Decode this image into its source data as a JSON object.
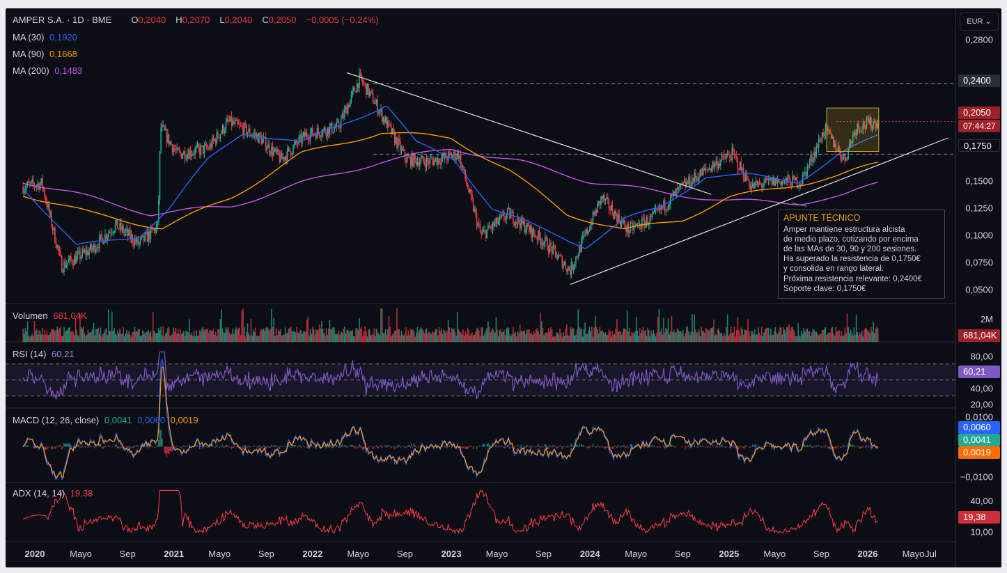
{
  "header": {
    "symbol": "AMPER S.A. · 1D · BME",
    "o_label": "O",
    "o_value": "0,2040",
    "h_label": "H",
    "h_value": "0,2070",
    "l_label": "L",
    "l_value": "0,2040",
    "c_label": "C",
    "c_value": "0,2050",
    "change": "−0,0005 (−0,24%)"
  },
  "currency": "EUR",
  "indicators": {
    "ma30": {
      "label": "MA (30)",
      "value": "0,1920",
      "color": "#2962ff"
    },
    "ma90": {
      "label": "MA (90)",
      "value": "0,1668",
      "color": "#ff9800"
    },
    "ma200": {
      "label": "MA (200)",
      "value": "0,1483",
      "color": "#c653f0"
    },
    "volume": {
      "label": "Volumen",
      "value": "681,04K"
    },
    "rsi": {
      "label": "RSI (14)",
      "value": "60,21"
    },
    "macd": {
      "label": "MACD (12, 26, close)",
      "hist": "0,0041",
      "macd": "0,0060",
      "signal": "0,0019"
    },
    "adx": {
      "label": "ADX (14, 14)",
      "value": "19,38"
    }
  },
  "tags": {
    "resistance": "0,2400",
    "price": "0,2050",
    "countdown": "07:44:27",
    "support": "0,1750",
    "volume": "681,04K",
    "rsi": "60,21",
    "macd": "0,0060",
    "hist": "0,0041",
    "signal": "0,0019",
    "adx": "19,38"
  },
  "note": {
    "title": "APUNTE TÉCNICO",
    "lines": [
      "Amper mantiene estructura alcista",
      "de medio plazo, cotizando por encima",
      "de las MAs de 30, 90 y 200 sesiones.",
      "Ha superado la resistencia de 0,1750€",
      "y consolida en rango lateral.",
      "Próxima resistencia relevante: 0,2400€",
      "Soporte clave: 0,1750€"
    ]
  },
  "colors": {
    "up": "#22ab94",
    "down": "#f23645",
    "background": "#0b0e14",
    "grid": "#1c2030",
    "text": "#d1d4dc"
  },
  "chart_data": {
    "type": "candlestick",
    "x_ticks": [
      "2020",
      "Mayo",
      "Sep",
      "2021",
      "Mayo",
      "Sep",
      "2022",
      "Mayo",
      "Sep",
      "2023",
      "Mayo",
      "Sep",
      "2024",
      "Mayo",
      "Sep",
      "2025",
      "Mayo",
      "Sep",
      "2026",
      "Mayo",
      "Jul"
    ],
    "price_axis": {
      "ticks": [
        "0,2800",
        "0,2400",
        "0,2050",
        "0,1750",
        "0,1500",
        "0,1250",
        "0,1000",
        "0,0750",
        "0,0500"
      ],
      "range": [
        0.04,
        0.29
      ]
    },
    "volume_axis": {
      "ticks": [
        "2M"
      ]
    },
    "rsi_axis": {
      "ticks": [
        "80,00",
        "40,00",
        "20,00"
      ],
      "bands": [
        30,
        50,
        70
      ],
      "range": [
        15,
        95
      ]
    },
    "macd_axis": {
      "ticks": [
        "0,0100",
        "0,0000",
        "−0,0100"
      ],
      "range": [
        -0.012,
        0.012
      ]
    },
    "adx_axis": {
      "ticks": [
        "40,00",
        "10,00"
      ],
      "range": [
        0,
        55
      ]
    },
    "price_path_anchors": [
      {
        "x": "2019-12-01",
        "y": 0.145
      },
      {
        "x": "2020-01-20",
        "y": 0.148
      },
      {
        "x": "2020-03-12",
        "y": 0.072
      },
      {
        "x": "2020-06-01",
        "y": 0.088
      },
      {
        "x": "2020-08-01",
        "y": 0.11
      },
      {
        "x": "2020-10-01",
        "y": 0.092
      },
      {
        "x": "2020-11-20",
        "y": 0.108
      },
      {
        "x": "2020-11-27",
        "y": 0.2
      },
      {
        "x": "2021-01-10",
        "y": 0.175
      },
      {
        "x": "2021-04-01",
        "y": 0.18
      },
      {
        "x": "2021-05-25",
        "y": 0.205
      },
      {
        "x": "2021-08-15",
        "y": 0.19
      },
      {
        "x": "2021-10-10",
        "y": 0.17
      },
      {
        "x": "2021-12-15",
        "y": 0.193
      },
      {
        "x": "2022-03-10",
        "y": 0.2
      },
      {
        "x": "2022-05-05",
        "y": 0.245
      },
      {
        "x": "2022-06-10",
        "y": 0.225
      },
      {
        "x": "2022-09-05",
        "y": 0.17
      },
      {
        "x": "2022-11-01",
        "y": 0.168
      },
      {
        "x": "2023-01-20",
        "y": 0.175
      },
      {
        "x": "2023-03-20",
        "y": 0.1
      },
      {
        "x": "2023-06-01",
        "y": 0.12
      },
      {
        "x": "2023-09-01",
        "y": 0.095
      },
      {
        "x": "2023-11-10",
        "y": 0.068
      },
      {
        "x": "2024-01-01",
        "y": 0.11
      },
      {
        "x": "2024-02-01",
        "y": 0.135
      },
      {
        "x": "2024-04-10",
        "y": 0.105
      },
      {
        "x": "2024-06-10",
        "y": 0.115
      },
      {
        "x": "2024-09-01",
        "y": 0.145
      },
      {
        "x": "2024-11-20",
        "y": 0.165
      },
      {
        "x": "2025-01-10",
        "y": 0.175
      },
      {
        "x": "2025-03-01",
        "y": 0.145
      },
      {
        "x": "2025-05-01",
        "y": 0.15
      },
      {
        "x": "2025-07-10",
        "y": 0.15
      },
      {
        "x": "2025-09-10",
        "y": 0.198
      },
      {
        "x": "2025-11-01",
        "y": 0.17
      },
      {
        "x": "2025-12-01",
        "y": 0.2
      },
      {
        "x": "2026-01-30",
        "y": 0.205
      }
    ],
    "ma30_anchors": [
      {
        "x": "2019-12-01",
        "y": 0.145
      },
      {
        "x": "2020-04-20",
        "y": 0.09
      },
      {
        "x": "2020-10-01",
        "y": 0.1
      },
      {
        "x": "2020-12-20",
        "y": 0.125
      },
      {
        "x": "2021-04-01",
        "y": 0.17
      },
      {
        "x": "2021-07-01",
        "y": 0.195
      },
      {
        "x": "2021-12-01",
        "y": 0.185
      },
      {
        "x": "2022-04-01",
        "y": 0.205
      },
      {
        "x": "2022-07-15",
        "y": 0.22
      },
      {
        "x": "2022-10-01",
        "y": 0.185
      },
      {
        "x": "2023-01-10",
        "y": 0.17
      },
      {
        "x": "2023-04-20",
        "y": 0.125
      },
      {
        "x": "2023-09-01",
        "y": 0.105
      },
      {
        "x": "2023-12-20",
        "y": 0.09
      },
      {
        "x": "2024-04-01",
        "y": 0.115
      },
      {
        "x": "2024-07-01",
        "y": 0.125
      },
      {
        "x": "2024-11-01",
        "y": 0.155
      },
      {
        "x": "2025-03-01",
        "y": 0.155
      },
      {
        "x": "2025-07-01",
        "y": 0.15
      },
      {
        "x": "2025-10-20",
        "y": 0.175
      },
      {
        "x": "2026-01-30",
        "y": 0.192
      }
    ],
    "ma90_anchors": [
      {
        "x": "2019-12-01",
        "y": 0.138
      },
      {
        "x": "2020-06-01",
        "y": 0.12
      },
      {
        "x": "2020-12-01",
        "y": 0.107
      },
      {
        "x": "2021-06-01",
        "y": 0.135
      },
      {
        "x": "2021-12-01",
        "y": 0.175
      },
      {
        "x": "2022-07-01",
        "y": 0.195
      },
      {
        "x": "2023-01-01",
        "y": 0.19
      },
      {
        "x": "2023-06-01",
        "y": 0.16
      },
      {
        "x": "2023-11-01",
        "y": 0.12
      },
      {
        "x": "2024-04-01",
        "y": 0.105
      },
      {
        "x": "2024-09-01",
        "y": 0.115
      },
      {
        "x": "2025-01-01",
        "y": 0.135
      },
      {
        "x": "2025-06-01",
        "y": 0.145
      },
      {
        "x": "2025-10-15",
        "y": 0.155
      },
      {
        "x": "2026-01-30",
        "y": 0.1668
      }
    ],
    "ma200_anchors": [
      {
        "x": "2019-12-01",
        "y": 0.15
      },
      {
        "x": "2020-04-01",
        "y": 0.14
      },
      {
        "x": "2020-11-01",
        "y": 0.12
      },
      {
        "x": "2021-06-01",
        "y": 0.127
      },
      {
        "x": "2021-12-01",
        "y": 0.148
      },
      {
        "x": "2022-07-01",
        "y": 0.168
      },
      {
        "x": "2023-01-01",
        "y": 0.18
      },
      {
        "x": "2023-07-01",
        "y": 0.168
      },
      {
        "x": "2024-01-01",
        "y": 0.15
      },
      {
        "x": "2024-07-01",
        "y": 0.14
      },
      {
        "x": "2025-01-01",
        "y": 0.132
      },
      {
        "x": "2025-07-01",
        "y": 0.13
      },
      {
        "x": "2025-11-01",
        "y": 0.137
      },
      {
        "x": "2026-01-30",
        "y": 0.1483
      }
    ],
    "trendlines": [
      {
        "name": "descending-resistance",
        "from": {
          "x": "2022-04-01",
          "y": 0.25
        },
        "to": {
          "x": "2024-11-15",
          "y": 0.138
        }
      },
      {
        "name": "ascending-support",
        "from": {
          "x": "2023-11-10",
          "y": 0.055
        },
        "to": {
          "x": "2026-08-01",
          "y": 0.19
        }
      }
    ],
    "levels": [
      0.24,
      0.175
    ],
    "consolidation_box": {
      "x1": "2025-09-15",
      "x2": "2026-01-30",
      "y1": 0.2175,
      "y2": 0.1775
    }
  }
}
